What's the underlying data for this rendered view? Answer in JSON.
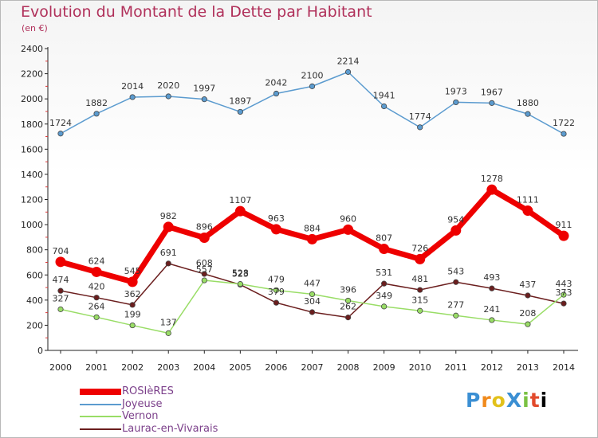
{
  "title": "Evolution du Montant de la Dette par Habitant",
  "subtitle": "(en €)",
  "logo": "ProXiti",
  "chart_data": {
    "type": "line",
    "x": [
      "2000",
      "2001",
      "2002",
      "2003",
      "2004",
      "2005",
      "2006",
      "2007",
      "2008",
      "2009",
      "2010",
      "2011",
      "2012",
      "2013",
      "2014"
    ],
    "ylim": [
      0,
      2400
    ],
    "yticks": [
      0,
      200,
      400,
      600,
      800,
      1000,
      1200,
      1400,
      1600,
      1800,
      2000,
      2200,
      2400
    ],
    "grid": false,
    "legend_position": "bottom-left",
    "series": [
      {
        "name": "ROSIèRES",
        "color": "#ee0000",
        "values": [
          704,
          624,
          545,
          982,
          896,
          1107,
          963,
          884,
          960,
          807,
          726,
          954,
          1278,
          1111,
          911
        ]
      },
      {
        "name": "Joyeuse",
        "color": "#5b9bcf",
        "values": [
          1724,
          1882,
          2014,
          2020,
          1997,
          1897,
          2042,
          2100,
          2214,
          1941,
          1774,
          1973,
          1967,
          1880,
          1722
        ]
      },
      {
        "name": "Vernon",
        "color": "#99dd66",
        "values": [
          327,
          264,
          199,
          137,
          557,
          528,
          479,
          447,
          396,
          349,
          315,
          277,
          241,
          208,
          443
        ]
      },
      {
        "name": "Laurac-en-Vivarais",
        "color": "#6b1e1e",
        "values": [
          474,
          420,
          362,
          691,
          608,
          523,
          379,
          304,
          262,
          531,
          481,
          543,
          493,
          437,
          373
        ]
      }
    ]
  }
}
